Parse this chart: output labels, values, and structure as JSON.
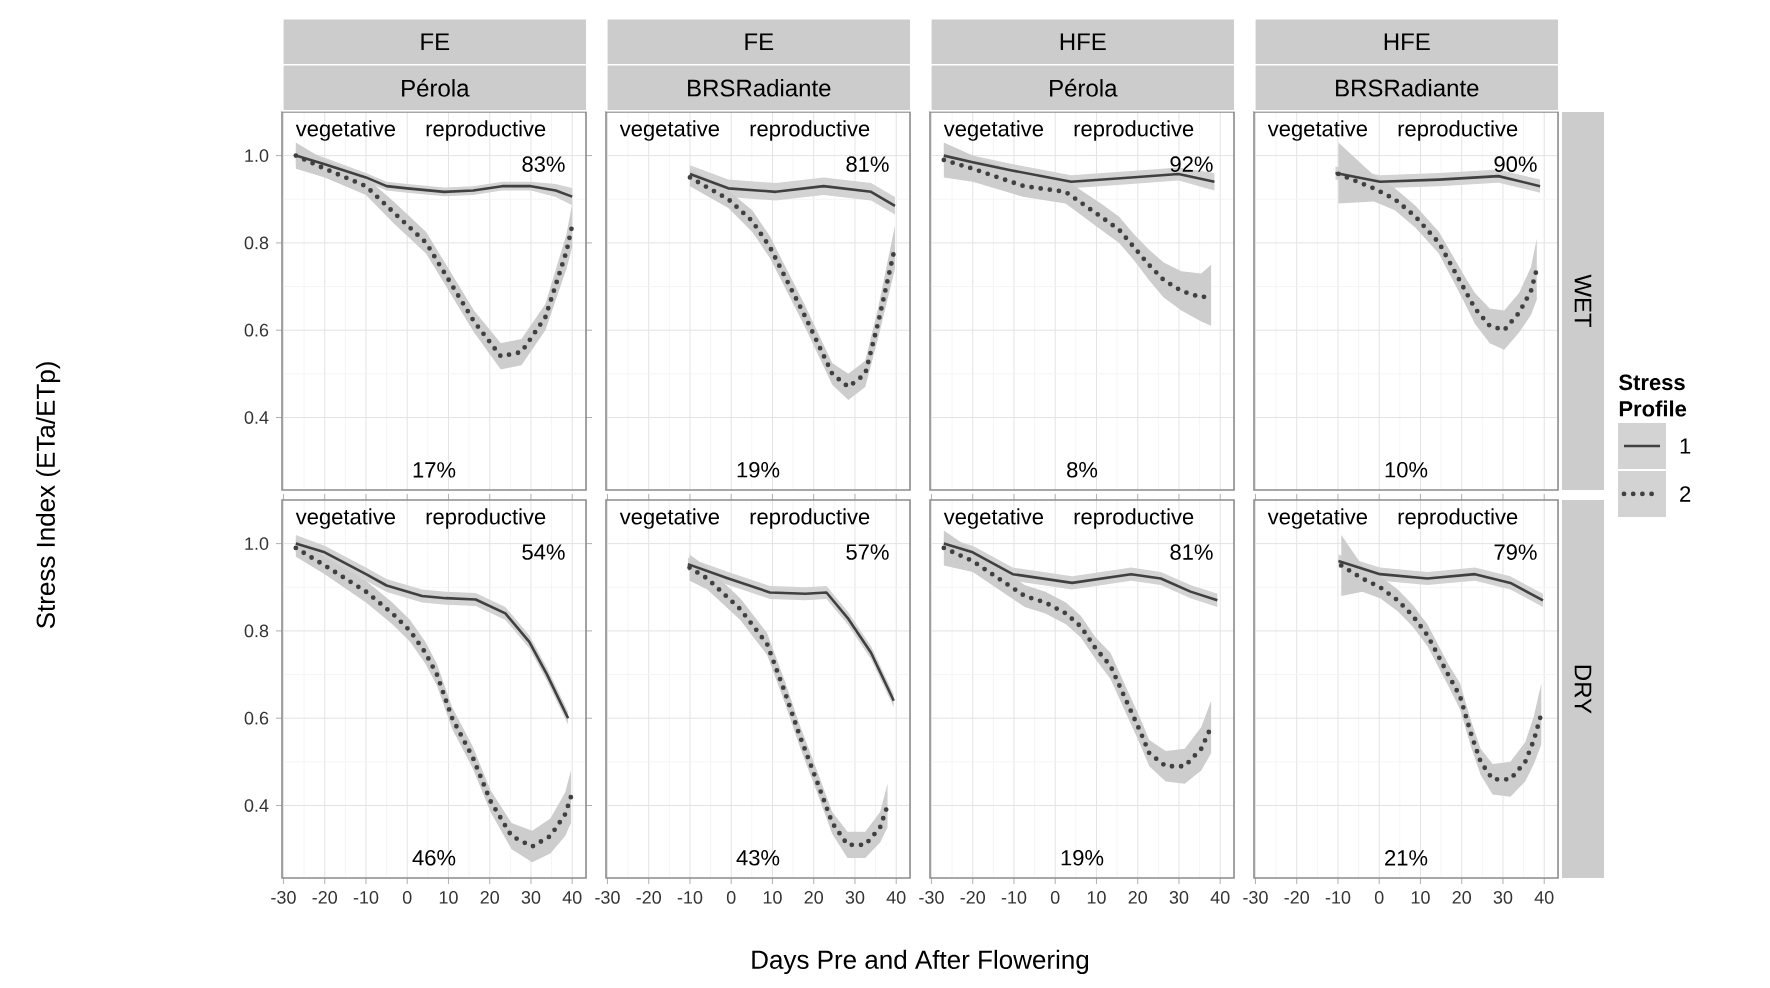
{
  "chart_data": [
    {
      "type": "line",
      "title": "FE",
      "subtitle": "Pérola",
      "ylabel": "Stress Index (ETa/ETp)",
      "xlim": [
        -30.35,
        43.35
      ],
      "ylim": [
        0.234,
        1.1
      ],
      "xticks": [
        -30,
        -20,
        -10,
        0,
        10,
        20,
        30,
        40
      ],
      "yticks": [
        0.4,
        0.6,
        0.8,
        {
          "value": 1,
          "label": "1.0"
        }
      ],
      "tick_labels": "y",
      "grid": true,
      "series": [
        {
          "color": "#404040",
          "line_style": "solid",
          "x": [
            -27,
            -20,
            -10,
            -5,
            0,
            9,
            16,
            23,
            30,
            36,
            40
          ],
          "values": [
            1.0,
            0.98,
            0.95,
            0.93,
            0.925,
            0.917,
            0.92,
            0.93,
            0.93,
            0.92,
            0.906
          ],
          "lower": [
            0.98,
            0.965,
            0.94,
            0.92,
            0.915,
            0.907,
            0.91,
            0.92,
            0.92,
            0.905,
            0.886
          ],
          "upper": [
            1.02,
            0.995,
            0.96,
            0.94,
            0.935,
            0.927,
            0.93,
            0.94,
            0.94,
            0.935,
            0.926
          ]
        },
        {
          "color": "#404040",
          "line_style": "dotted",
          "x": [
            -27,
            -20,
            -10,
            -3.3,
            4.6,
            10.4,
            16.2,
            22.7,
            27.7,
            33.5,
            38.6,
            40
          ],
          "values": [
            1.0,
            0.97,
            0.93,
            0.87,
            0.8,
            0.71,
            0.62,
            0.54,
            0.55,
            0.63,
            0.78,
            0.84
          ],
          "lower": [
            0.97,
            0.95,
            0.91,
            0.845,
            0.775,
            0.685,
            0.595,
            0.51,
            0.52,
            0.6,
            0.74,
            0.79
          ],
          "upper": [
            1.03,
            0.99,
            0.95,
            0.895,
            0.825,
            0.735,
            0.645,
            0.57,
            0.58,
            0.66,
            0.82,
            0.89
          ]
        }
      ],
      "annotations": [
        "vegetative",
        "reproductive",
        "83%",
        "17%"
      ]
    },
    {
      "type": "line",
      "title": "FE",
      "subtitle": "BRSRadiante",
      "xlim": [
        -30.35,
        43.35
      ],
      "ylim": [
        0.234,
        1.1
      ],
      "xticks": [
        -30,
        -20,
        -10,
        0,
        10,
        20,
        30,
        40
      ],
      "yticks": [
        0.4,
        0.6,
        0.8,
        1
      ],
      "tick_labels": false,
      "grid": true,
      "series": [
        {
          "color": "#404040",
          "line_style": "solid",
          "x": [
            -10,
            -0.7,
            10.8,
            22.4,
            33.9,
            39.7
          ],
          "values": [
            0.958,
            0.925,
            0.917,
            0.93,
            0.917,
            0.885
          ],
          "lower": [
            0.938,
            0.905,
            0.897,
            0.91,
            0.897,
            0.865
          ],
          "upper": [
            0.978,
            0.945,
            0.937,
            0.95,
            0.937,
            0.905
          ]
        },
        {
          "color": "#404040",
          "line_style": "dotted",
          "x": [
            -10,
            -0.7,
            5.1,
            9.4,
            13.7,
            18,
            21,
            24.5,
            28.4,
            32.5,
            35.7,
            39.7
          ],
          "values": [
            0.95,
            0.9,
            0.85,
            0.79,
            0.71,
            0.63,
            0.57,
            0.5,
            0.47,
            0.5,
            0.62,
            0.79
          ],
          "lower": [
            0.93,
            0.88,
            0.825,
            0.765,
            0.685,
            0.605,
            0.545,
            0.475,
            0.44,
            0.47,
            0.585,
            0.74
          ],
          "upper": [
            0.97,
            0.92,
            0.875,
            0.815,
            0.735,
            0.655,
            0.595,
            0.525,
            0.5,
            0.53,
            0.655,
            0.84
          ]
        }
      ],
      "annotations": [
        "vegetative",
        "reproductive",
        "81%",
        "19%"
      ]
    },
    {
      "type": "line",
      "title": "HFE",
      "subtitle": "Pérola",
      "xlim": [
        -30.35,
        43.35
      ],
      "ylim": [
        0.234,
        1.1
      ],
      "xticks": [
        -30,
        -20,
        -10,
        0,
        10,
        20,
        30,
        40
      ],
      "yticks": [
        0.4,
        0.6,
        0.8,
        1
      ],
      "tick_labels": false,
      "grid": true,
      "series": [
        {
          "color": "#404040",
          "line_style": "solid",
          "x": [
            -27,
            -20,
            -10.5,
            3.9,
            18.4,
            29.9,
            38.6
          ],
          "values": [
            1.0,
            0.985,
            0.966,
            0.94,
            0.95,
            0.958,
            0.94
          ],
          "lower": [
            0.975,
            0.97,
            0.951,
            0.925,
            0.935,
            0.943,
            0.92
          ],
          "upper": [
            1.025,
            1.0,
            0.981,
            0.955,
            0.965,
            0.973,
            0.96
          ]
        },
        {
          "color": "#404040",
          "line_style": "dotted",
          "x": [
            -27,
            -20,
            -7.6,
            2.5,
            11.1,
            15.5,
            19.1,
            22.7,
            26.3,
            30.6,
            35.4,
            37.8
          ],
          "values": [
            0.99,
            0.97,
            0.93,
            0.917,
            0.86,
            0.83,
            0.79,
            0.75,
            0.715,
            0.69,
            0.675,
            0.68
          ],
          "lower": [
            0.95,
            0.94,
            0.905,
            0.89,
            0.83,
            0.8,
            0.76,
            0.715,
            0.675,
            0.645,
            0.62,
            0.61
          ],
          "upper": [
            1.03,
            1.0,
            0.955,
            0.944,
            0.89,
            0.86,
            0.82,
            0.785,
            0.755,
            0.735,
            0.73,
            0.75
          ]
        }
      ],
      "annotations": [
        "vegetative",
        "reproductive",
        "92%",
        "8%"
      ]
    },
    {
      "type": "line",
      "title": "HFE",
      "subtitle": "BRSRadiante",
      "y2label": "WET",
      "legend": "right",
      "legend_title": "Stress Profile",
      "xlim": [
        -30.35,
        43.35
      ],
      "ylim": [
        0.234,
        1.1
      ],
      "xticks": [
        -30,
        -20,
        -10,
        0,
        10,
        20,
        30,
        40
      ],
      "yticks": [
        0.4,
        0.6,
        0.8,
        1
      ],
      "tick_labels": false,
      "grid": true,
      "series": [
        {
          "name": "1",
          "color": "#404040",
          "line_style": "solid",
          "x": [
            -10.6,
            0.2,
            14.5,
            28.9,
            39
          ],
          "values": [
            0.96,
            0.94,
            0.945,
            0.953,
            0.93
          ],
          "lower": [
            0.945,
            0.925,
            0.93,
            0.938,
            0.915
          ],
          "upper": [
            0.975,
            0.955,
            0.96,
            0.968,
            0.945
          ]
        },
        {
          "name": "2",
          "color": "#404040",
          "line_style": "dotted",
          "x": [
            -9.9,
            -1.3,
            3.8,
            8.8,
            14.5,
            20.3,
            23.2,
            26.8,
            30.3,
            33.9,
            36.8,
            38.2
          ],
          "values": [
            0.958,
            0.925,
            0.9,
            0.86,
            0.8,
            0.7,
            0.65,
            0.61,
            0.6,
            0.64,
            0.69,
            0.74
          ],
          "lower": [
            0.89,
            0.895,
            0.875,
            0.835,
            0.775,
            0.67,
            0.615,
            0.57,
            0.555,
            0.595,
            0.635,
            0.67
          ],
          "upper": [
            1.03,
            0.955,
            0.925,
            0.885,
            0.825,
            0.73,
            0.685,
            0.65,
            0.645,
            0.685,
            0.745,
            0.81
          ]
        }
      ],
      "annotations": [
        "vegetative",
        "reproductive",
        "90%",
        "10%"
      ]
    },
    {
      "type": "line",
      "xlim": [
        -30.35,
        43.35
      ],
      "ylim": [
        0.234,
        1.1
      ],
      "xticks": [
        -30,
        -20,
        -10,
        0,
        10,
        20,
        30,
        40
      ],
      "yticks": [
        0.4,
        0.6,
        0.8,
        {
          "value": 1,
          "label": "1.0"
        }
      ],
      "grid": true,
      "series": [
        {
          "color": "#404040",
          "line_style": "solid",
          "x": [
            -27,
            -20,
            -10,
            -5,
            3.6,
            9.4,
            16.6,
            23.8,
            29.6,
            33.9,
            39
          ],
          "values": [
            1.0,
            0.98,
            0.93,
            0.904,
            0.88,
            0.875,
            0.872,
            0.84,
            0.775,
            0.7,
            0.6
          ],
          "lower": [
            0.98,
            0.965,
            0.915,
            0.889,
            0.865,
            0.86,
            0.857,
            0.825,
            0.76,
            0.685,
            0.585
          ],
          "upper": [
            1.02,
            0.995,
            0.945,
            0.919,
            0.895,
            0.89,
            0.887,
            0.855,
            0.79,
            0.715,
            0.615
          ]
        },
        {
          "color": "#404040",
          "line_style": "dotted",
          "x": [
            -27,
            -20,
            -10,
            -3.6,
            0.7,
            4.4,
            7.2,
            10.9,
            15.9,
            20.2,
            25.3,
            30.3,
            34.7,
            38.3,
            39.7
          ],
          "values": [
            0.99,
            0.95,
            0.89,
            0.84,
            0.8,
            0.75,
            0.7,
            0.6,
            0.51,
            0.41,
            0.33,
            0.306,
            0.33,
            0.38,
            0.42
          ],
          "lower": [
            0.97,
            0.93,
            0.865,
            0.815,
            0.775,
            0.725,
            0.675,
            0.575,
            0.485,
            0.385,
            0.3,
            0.27,
            0.29,
            0.33,
            0.36
          ],
          "upper": [
            1.01,
            0.97,
            0.915,
            0.865,
            0.825,
            0.775,
            0.725,
            0.625,
            0.535,
            0.435,
            0.36,
            0.342,
            0.37,
            0.43,
            0.48
          ]
        }
      ],
      "annotations": [
        "vegetative",
        "reproductive",
        "54%",
        "46%"
      ]
    },
    {
      "type": "line",
      "xlabel": "Days Pre and After Flowering",
      "xlim": [
        -30.35,
        43.35
      ],
      "ylim": [
        0.234,
        1.1
      ],
      "xticks": [
        -30,
        -20,
        -10,
        0,
        10,
        20,
        30,
        40
      ],
      "yticks": [
        0.4,
        0.6,
        0.8,
        1
      ],
      "tick_labels": "x",
      "grid": true,
      "series": [
        {
          "color": "#404040",
          "line_style": "solid",
          "x": [
            -10.5,
            -0.7,
            9.4,
            18,
            23.1,
            28.2,
            33.9,
            39.4
          ],
          "values": [
            0.953,
            0.92,
            0.888,
            0.885,
            0.888,
            0.83,
            0.75,
            0.64
          ],
          "lower": [
            0.938,
            0.905,
            0.873,
            0.87,
            0.873,
            0.815,
            0.735,
            0.625
          ],
          "upper": [
            0.968,
            0.935,
            0.903,
            0.9,
            0.903,
            0.845,
            0.765,
            0.655
          ]
        },
        {
          "color": "#404040",
          "line_style": "dotted",
          "x": [
            -10.1,
            -5.8,
            2.2,
            8.7,
            13,
            16.6,
            21,
            24.5,
            28.2,
            32.5,
            36.1,
            37.9
          ],
          "values": [
            0.945,
            0.92,
            0.85,
            0.77,
            0.66,
            0.56,
            0.45,
            0.36,
            0.31,
            0.31,
            0.35,
            0.4
          ],
          "lower": [
            0.915,
            0.895,
            0.825,
            0.745,
            0.635,
            0.535,
            0.425,
            0.335,
            0.28,
            0.28,
            0.315,
            0.35
          ],
          "upper": [
            0.975,
            0.945,
            0.875,
            0.795,
            0.685,
            0.585,
            0.475,
            0.385,
            0.34,
            0.34,
            0.385,
            0.45
          ]
        }
      ],
      "annotations": [
        "vegetative",
        "reproductive",
        "57%",
        "43%"
      ]
    },
    {
      "type": "line",
      "xlim": [
        -30.35,
        43.35
      ],
      "ylim": [
        0.234,
        1.1
      ],
      "xticks": [
        -30,
        -20,
        -10,
        0,
        10,
        20,
        30,
        40
      ],
      "yticks": [
        0.4,
        0.6,
        0.8,
        1
      ],
      "tick_labels": "x",
      "grid": true,
      "series": [
        {
          "color": "#404040",
          "line_style": "solid",
          "x": [
            -27,
            -20,
            -10.3,
            4.1,
            18.4,
            25.6,
            32.8,
            39.3
          ],
          "values": [
            1.0,
            0.98,
            0.93,
            0.91,
            0.93,
            0.92,
            0.89,
            0.87
          ],
          "lower": [
            0.985,
            0.965,
            0.915,
            0.895,
            0.915,
            0.905,
            0.875,
            0.855
          ],
          "upper": [
            1.015,
            0.995,
            0.945,
            0.925,
            0.945,
            0.935,
            0.905,
            0.885
          ]
        },
        {
          "color": "#404040",
          "line_style": "dotted",
          "x": [
            -27,
            -20,
            -7.4,
            -2.4,
            2.6,
            6.2,
            9.8,
            13.4,
            17.7,
            20.6,
            22.8,
            26.8,
            31.4,
            35.4,
            37.8
          ],
          "values": [
            0.99,
            0.96,
            0.88,
            0.865,
            0.84,
            0.81,
            0.76,
            0.72,
            0.63,
            0.57,
            0.52,
            0.49,
            0.49,
            0.53,
            0.58
          ],
          "lower": [
            0.95,
            0.935,
            0.855,
            0.84,
            0.815,
            0.785,
            0.735,
            0.69,
            0.6,
            0.54,
            0.49,
            0.455,
            0.45,
            0.48,
            0.52
          ],
          "upper": [
            1.03,
            0.985,
            0.905,
            0.89,
            0.865,
            0.835,
            0.785,
            0.75,
            0.66,
            0.6,
            0.55,
            0.525,
            0.53,
            0.58,
            0.64
          ]
        }
      ],
      "annotations": [
        "vegetative",
        "reproductive",
        "81%",
        "19%"
      ]
    },
    {
      "type": "line",
      "y2label": "DRY",
      "xlim": [
        -30.35,
        43.35
      ],
      "ylim": [
        0.234,
        1.1
      ],
      "xticks": [
        -30,
        -20,
        -10,
        0,
        10,
        20,
        30,
        40
      ],
      "yticks": [
        0.4,
        0.6,
        0.8,
        1
      ],
      "tick_labels": "x",
      "grid": true,
      "series": [
        {
          "color": "#404040",
          "line_style": "solid",
          "x": [
            -9.9,
            0.2,
            11.7,
            23.2,
            31.8,
            39.7
          ],
          "values": [
            0.96,
            0.93,
            0.92,
            0.93,
            0.91,
            0.87
          ],
          "lower": [
            0.945,
            0.915,
            0.905,
            0.915,
            0.895,
            0.855
          ],
          "upper": [
            0.975,
            0.945,
            0.935,
            0.945,
            0.925,
            0.885
          ]
        },
        {
          "color": "#404040",
          "line_style": "dotted",
          "x": [
            -9.2,
            -4.1,
            0.2,
            4.5,
            8.1,
            11.7,
            16.7,
            19.6,
            22.4,
            24.6,
            27.5,
            31.8,
            35.4,
            37.5,
            39.3
          ],
          "values": [
            0.95,
            0.92,
            0.9,
            0.87,
            0.835,
            0.79,
            0.7,
            0.65,
            0.56,
            0.5,
            0.46,
            0.46,
            0.5,
            0.55,
            0.61
          ],
          "lower": [
            0.88,
            0.89,
            0.875,
            0.845,
            0.81,
            0.765,
            0.675,
            0.62,
            0.53,
            0.47,
            0.425,
            0.42,
            0.455,
            0.495,
            0.54
          ],
          "upper": [
            1.02,
            0.95,
            0.925,
            0.895,
            0.86,
            0.815,
            0.725,
            0.68,
            0.59,
            0.53,
            0.495,
            0.5,
            0.545,
            0.605,
            0.68
          ]
        }
      ],
      "annotations": [
        "vegetative",
        "reproductive",
        "79%",
        "21%"
      ]
    }
  ]
}
